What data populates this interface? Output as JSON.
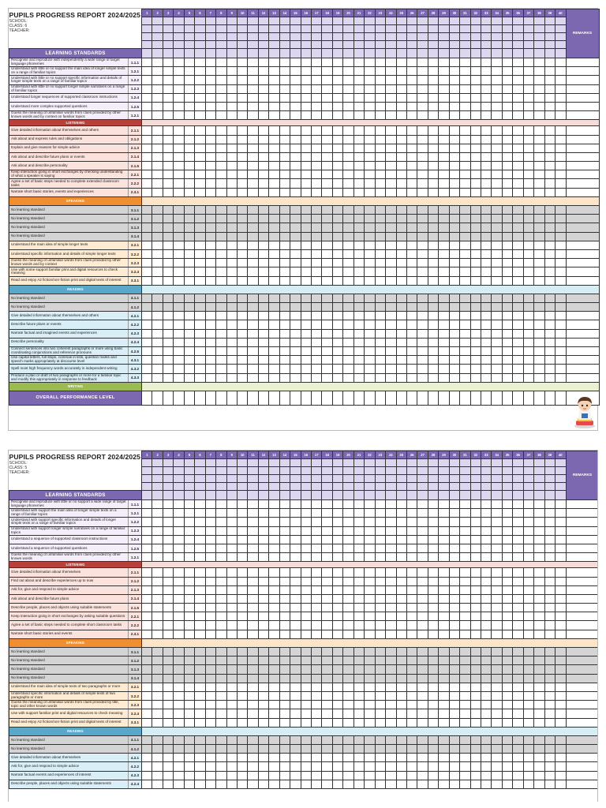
{
  "columns": [
    "1",
    "2",
    "3",
    "4",
    "5",
    "6",
    "7",
    "8",
    "9",
    "10",
    "11",
    "12",
    "13",
    "14",
    "15",
    "16",
    "17",
    "18",
    "19",
    "20",
    "21",
    "22",
    "23",
    "24",
    "25",
    "26",
    "27",
    "28",
    "29",
    "30",
    "31",
    "32",
    "33",
    "34",
    "35",
    "36",
    "37",
    "38",
    "39",
    "40"
  ],
  "labels": {
    "remarks": "REMARKS",
    "learning_standards": "LEARNING STANDARDS",
    "overall": "OVERALL PERFORMANCE LEVEL",
    "school": "SCHOOL:",
    "teacher": "TEACHER:"
  },
  "colors": {
    "header_purple": "#7b68b0",
    "header_lavender": "#dcd6ef",
    "listening": "#b8413c",
    "speaking": "#ef8f31",
    "reading": "#5aa8c9",
    "writing": "#9bbb52",
    "no_standard_grey": "#d4d4d4"
  },
  "reports": [
    {
      "title": "PUPILS PROGRESS REPORT 2024/2025",
      "class_label": "CLASS:  6",
      "sections": [
        {
          "kind": "base",
          "rows": [
            {
              "text": "Recognise and reproduce with independently a wide range of target language phonemes",
              "code": "1.1.1"
            },
            {
              "text": "Understand with little or no support the main idea of longer simple texts on a range of familiar topics",
              "code": "1.2.1"
            },
            {
              "text": "Understand with little or no support specific information and details of longer simple texts on a range of familiar topics",
              "code": "1.2.2"
            },
            {
              "text": "Understand with little or no support longer simple narratives on a range of familiar topics",
              "code": "1.2.3"
            },
            {
              "text": "Understand longer sequences of supported classroom instructions",
              "code": "1.2.4"
            },
            {
              "text": "Understand more complex supported questions",
              "code": "1.2.5"
            },
            {
              "text": "Guess the meaning of unfamiliar words from clues provided by other known words and by context on familiar topics",
              "code": "1.2.1"
            }
          ]
        },
        {
          "kind": "list",
          "band": "LISTENING",
          "rows": [
            {
              "text": "Give detailed information about themselves and others",
              "code": "2.1.1"
            },
            {
              "text": "Ask about and express rules and obligations",
              "code": "2.1.2"
            },
            {
              "text": "Explain and give reasons for simple advice",
              "code": "2.1.3"
            },
            {
              "text": "Ask about and describe future plans or events",
              "code": "2.1.4"
            },
            {
              "text": "Ask about and describe personality",
              "code": "2.1.5"
            },
            {
              "text": "Keep interaction going in short exchanges by checking understanding of what a speaker is saying",
              "code": "2.2.1"
            },
            {
              "text": "Agree a set of basic steps needed to complete extended classroom tasks",
              "code": "2.2.2"
            },
            {
              "text": "Narrate short basic stories, events and experiences",
              "code": "2.3.1"
            }
          ]
        },
        {
          "kind": "speak",
          "band": "SPEAKING",
          "rows": [
            {
              "text": "No learning standard",
              "code": "3.1.1",
              "grey": true
            },
            {
              "text": "No learning standard",
              "code": "3.1.2",
              "grey": true
            },
            {
              "text": "No learning standard",
              "code": "3.1.3",
              "grey": true
            },
            {
              "text": "No learning standard",
              "code": "3.1.4",
              "grey": true
            },
            {
              "text": "Understand the main idea of simple longer texts",
              "code": "3.2.1"
            },
            {
              "text": "Understand specific information and details of simple longer texts",
              "code": "3.2.2"
            },
            {
              "text": "Guess the meaning of unfamiliar words from clues provided by other known words and by context",
              "code": "3.2.3"
            },
            {
              "text": "Use with some support familiar print and digital resources to check meaning",
              "code": "3.2.4"
            },
            {
              "text": "Read and enjoy A2 fiction/non-fiction print and digital texts of interest",
              "code": "3.3.1"
            }
          ]
        },
        {
          "kind": "read",
          "band": "READING",
          "rows": [
            {
              "text": "No learning standard",
              "code": "4.1.1",
              "grey": true
            },
            {
              "text": "No learning standard",
              "code": "4.1.2",
              "grey": true
            },
            {
              "text": "Give detailed information about themselves and others",
              "code": "4.2.1"
            },
            {
              "text": "Describe future plans or events",
              "code": "4.2.2"
            },
            {
              "text": "Narrate factual and imagined events and experiences",
              "code": "4.2.3"
            },
            {
              "text": "Describe personality",
              "code": "4.2.4"
            },
            {
              "text": "Connect sentences into two coherent paragraphs or more using basic coordinating conjunctions and reference pronouns",
              "code": "4.2.5"
            },
            {
              "text": "Use capital letters, full stops, commas in lists, question marks and speech marks appropriately at discourse level",
              "code": "4.3.1"
            },
            {
              "text": "Spell most high frequency words accurately in independent writing",
              "code": "4.3.2"
            },
            {
              "text": "Produce a plan or draft of two paragraphs or more for a familiar topic and modify this appropriately in response to feedback",
              "code": "4.3.3"
            }
          ]
        },
        {
          "kind": "write",
          "band": "WRITING",
          "rows": []
        }
      ]
    },
    {
      "title": "PUPILS PROGRESS REPORT 2024/2025",
      "class_label": "CLASS:  5",
      "sections": [
        {
          "kind": "base",
          "rows": [
            {
              "text": "Recognise and reproduce with little or no support a wide range of target language phonemes",
              "code": "1.1.1"
            },
            {
              "text": "Understand with support the main idea of longer simple texts on a range of familiar topics",
              "code": "1.2.1"
            },
            {
              "text": "Understand with support specific information and details of longer simple texts on a range of familiar topics",
              "code": "1.2.2"
            },
            {
              "text": "Understand with support longer simple narratives on a range of familiar topics",
              "code": "1.2.3"
            },
            {
              "text": "Understand a sequence of supported classroom instructions",
              "code": "1.2.4"
            },
            {
              "text": "Understand a sequence of supported questions",
              "code": "1.2.5"
            },
            {
              "text": "Guess the meaning of unfamiliar words from clues provided by other known words",
              "code": "1.2.1"
            }
          ]
        },
        {
          "kind": "list",
          "band": "LISTENING",
          "rows": [
            {
              "text": "Give detailed information about themselves",
              "code": "2.1.1"
            },
            {
              "text": "Find out about and describe experiences up to now",
              "code": "2.1.2"
            },
            {
              "text": "Ask for, give and respond to simple advice",
              "code": "2.1.3"
            },
            {
              "text": "Ask about and describe future plans",
              "code": "2.1.4"
            },
            {
              "text": "Describe people, places and objects using suitable statements",
              "code": "2.1.5"
            },
            {
              "text": "Keep interaction going in short exchanges by asking suitable questions",
              "code": "2.2.1"
            },
            {
              "text": "Agree a set of basic steps needed to complete short classroom tasks",
              "code": "2.2.2"
            },
            {
              "text": "Narrate short basic stories and events",
              "code": "2.3.1"
            }
          ]
        },
        {
          "kind": "speak",
          "band": "SPEAKING",
          "rows": [
            {
              "text": "No learning standard",
              "code": "3.1.1",
              "grey": true
            },
            {
              "text": "No learning standard",
              "code": "3.1.2",
              "grey": true
            },
            {
              "text": "No learning standard",
              "code": "3.1.3",
              "grey": true
            },
            {
              "text": "No learning standard",
              "code": "3.1.4",
              "grey": true
            },
            {
              "text": "Understand the main idea of simple texts of two paragraphs or more",
              "code": "3.2.1"
            },
            {
              "text": "Understand specific information and details of simple texts of two paragraphs or more",
              "code": "3.2.2"
            },
            {
              "text": "Guess the meaning of unfamiliar words from clues provided by title, topic and other known words",
              "code": "3.2.3"
            },
            {
              "text": "Use with support familiar print and digital resources to check meaning",
              "code": "3.2.4"
            },
            {
              "text": "Read and enjoy A2 fiction/non-fiction print and digital texts of interest",
              "code": "3.3.1"
            }
          ]
        },
        {
          "kind": "read",
          "band": "READING",
          "rows": [
            {
              "text": "No learning standard",
              "code": "4.1.1",
              "grey": true
            },
            {
              "text": "No learning standard",
              "code": "4.1.2",
              "grey": true
            },
            {
              "text": "Give detailed information about themselves",
              "code": "4.2.1"
            },
            {
              "text": "Ask for, give and respond to simple advice",
              "code": "4.2.2"
            },
            {
              "text": "Narrate factual events and experiences of interest",
              "code": "4.2.3"
            },
            {
              "text": "Describe people, places and objects using suitable statements",
              "code": "4.2.4"
            }
          ]
        }
      ]
    }
  ]
}
